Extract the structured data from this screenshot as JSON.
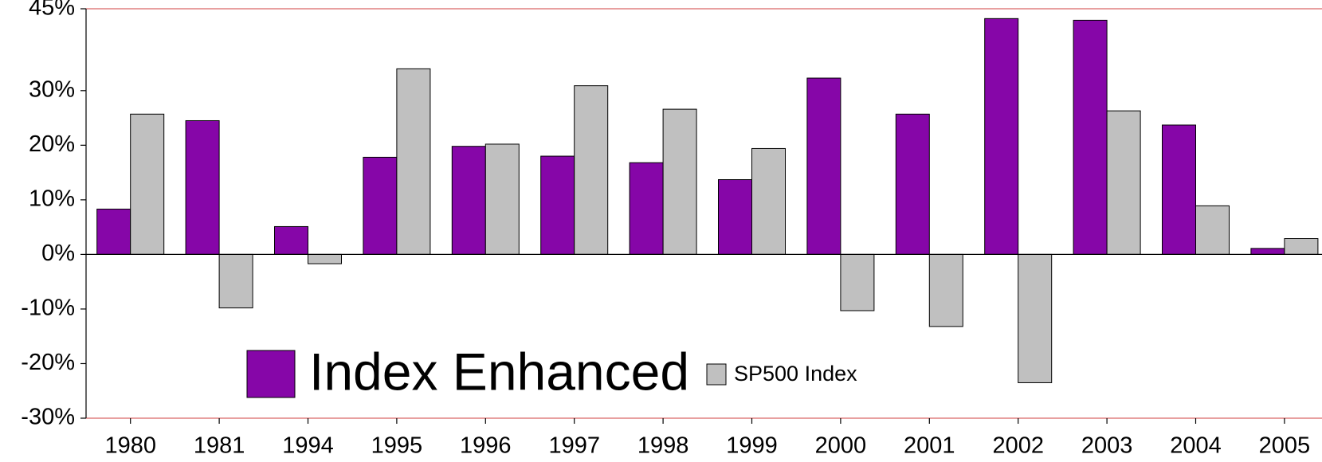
{
  "chart_data": {
    "type": "bar",
    "categories": [
      "1980",
      "1981",
      "1994",
      "1995",
      "1996",
      "1997",
      "1998",
      "1999",
      "2000",
      "2001",
      "2002",
      "2003",
      "2004",
      "2005"
    ],
    "series": [
      {
        "name": "Index Enhanced",
        "color": "#8606a8",
        "values": [
          8.3,
          24.5,
          5.1,
          17.8,
          19.8,
          18.0,
          16.8,
          13.7,
          32.3,
          25.7,
          43.2,
          42.9,
          23.7,
          1.1
        ]
      },
      {
        "name": "SP500 Index",
        "color": "#c0c0c0",
        "values": [
          25.7,
          -9.8,
          -1.7,
          34.0,
          20.2,
          30.9,
          26.6,
          19.4,
          -10.3,
          -13.2,
          -23.5,
          26.3,
          8.9,
          2.9
        ]
      }
    ],
    "ylim": [
      -30,
      45
    ],
    "yticks": [
      {
        "value": -30,
        "label": "-30%"
      },
      {
        "value": -20,
        "label": "-20%"
      },
      {
        "value": -10,
        "label": "-10%"
      },
      {
        "value": 0,
        "label": "0%"
      },
      {
        "value": 10,
        "label": "10%"
      },
      {
        "value": 20,
        "label": "20%"
      },
      {
        "value": 30,
        "label": "30%"
      },
      {
        "value": 45,
        "label": "45%"
      }
    ],
    "grid": false
  }
}
